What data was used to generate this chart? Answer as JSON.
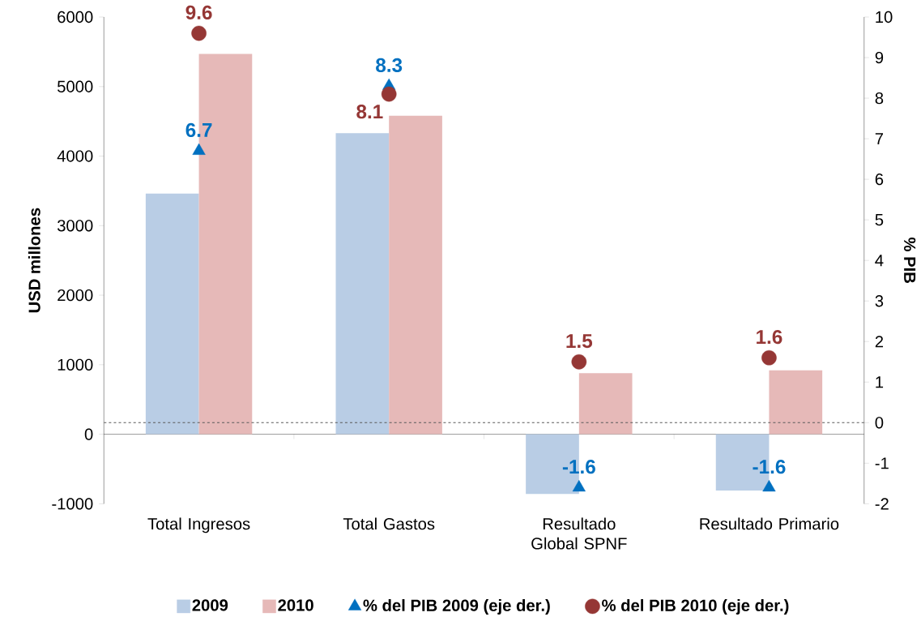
{
  "chart_data": {
    "type": "bar",
    "categories": [
      "Total Ingresos",
      "Total Gastos",
      "Resultado Global SPNF",
      "Resultado Primario"
    ],
    "ylabel": "USD millones",
    "y2label": "% PIB",
    "ylim": [
      -1000,
      6000
    ],
    "yticks": [
      -1000,
      0,
      1000,
      2000,
      3000,
      4000,
      5000,
      6000
    ],
    "y2lim": [
      -2,
      10
    ],
    "y2ticks": [
      -2,
      -1,
      0,
      1,
      2,
      3,
      4,
      5,
      6,
      7,
      8,
      9,
      10
    ],
    "series": [
      {
        "name": "2009",
        "color": "#b9cde5",
        "values": [
          3460,
          4330,
          -860,
          -810
        ]
      },
      {
        "name": "2010",
        "color": "#e6b9b8",
        "values": [
          5470,
          4580,
          880,
          920
        ]
      },
      {
        "name": "% del PIB 2009 (eje der.)",
        "type": "scatter",
        "axis": "y2",
        "marker": "triangle",
        "color": "#0070c0",
        "values": [
          6.7,
          8.3,
          -1.6,
          -1.6
        ],
        "value_labels": [
          "6.7",
          "8.3",
          "-1.6",
          "-1.6"
        ]
      },
      {
        "name": "% del PIB 2010 (eje der.)",
        "type": "scatter",
        "axis": "y2",
        "marker": "circle",
        "color": "#953735",
        "values": [
          9.6,
          8.1,
          1.5,
          1.6
        ],
        "value_labels": [
          "9.6",
          "8.1",
          "1.5",
          "1.6"
        ]
      }
    ],
    "ref_lines": [
      {
        "axis": "y2",
        "value": 0,
        "line_style": "dashed",
        "color": "#595959"
      }
    ],
    "legend": "bottom",
    "grid": false
  }
}
